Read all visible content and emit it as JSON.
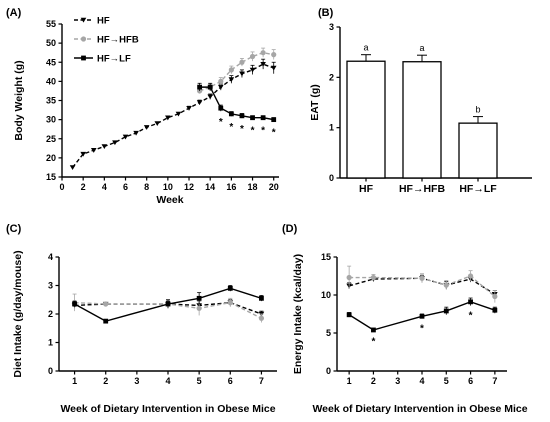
{
  "panel_labels": [
    "(A)",
    "(B)",
    "(C)",
    "(D)"
  ],
  "colors": {
    "hf": "#000000",
    "hfb": "#a6a6a6",
    "lf": "#000000"
  },
  "chart_data": [
    {
      "type": "line",
      "panel": "(A)",
      "xlabel": "Week",
      "ylabel": "Body  Weight (g)",
      "xlim": [
        0,
        20.5
      ],
      "ylim": [
        15,
        55
      ],
      "xticks": [
        0,
        2,
        4,
        6,
        8,
        10,
        12,
        14,
        16,
        18,
        20
      ],
      "yticks": [
        15,
        20,
        25,
        30,
        35,
        40,
        45,
        50,
        55
      ],
      "legend_position": "top-left",
      "series": [
        {
          "name": "HF",
          "style": "dashed",
          "marker": "triangle-down",
          "color": "#000000",
          "x": [
            1,
            2,
            3,
            4,
            5,
            6,
            7,
            8,
            9,
            10,
            11,
            12,
            13,
            14,
            15,
            16,
            17,
            18,
            19,
            20
          ],
          "y": [
            17.5,
            21,
            22,
            23,
            24,
            25.5,
            26.5,
            28,
            29,
            30.5,
            31.5,
            33,
            34.5,
            36,
            38.5,
            40.5,
            42,
            43,
            44.5,
            43.5
          ],
          "err": [
            0.3,
            0.3,
            0.3,
            0.3,
            0.3,
            0.3,
            0.3,
            0.3,
            0.3,
            0.4,
            0.4,
            0.5,
            0.6,
            0.7,
            0.8,
            1,
            1,
            1.2,
            1.3,
            1.5
          ]
        },
        {
          "name": "HF→HFB",
          "style": "dashed",
          "marker": "circle",
          "color": "#a6a6a6",
          "x": [
            13,
            14,
            15,
            16,
            17,
            18,
            19,
            20
          ],
          "y": [
            37.5,
            38.5,
            40,
            43,
            45,
            46.5,
            47.5,
            47
          ],
          "err": [
            0.7,
            0.8,
            1,
            1,
            1,
            1.2,
            1.2,
            1.3
          ]
        },
        {
          "name": "HF→LF",
          "style": "solid",
          "marker": "square",
          "color": "#000000",
          "x": [
            13,
            14,
            15,
            16,
            17,
            18,
            19,
            20
          ],
          "y": [
            38.5,
            38.5,
            33,
            31.5,
            31,
            30.5,
            30.5,
            30
          ],
          "err": [
            1,
            1,
            0.8,
            0.6,
            0.6,
            0.5,
            0.5,
            0.5
          ]
        }
      ],
      "annotations": [
        {
          "x": 15,
          "text": "*"
        },
        {
          "x": 16,
          "text": "*"
        },
        {
          "x": 17,
          "text": "*"
        },
        {
          "x": 18,
          "text": "*"
        },
        {
          "x": 19,
          "text": "*"
        },
        {
          "x": 20,
          "text": "*"
        }
      ]
    },
    {
      "type": "bar",
      "panel": "(B)",
      "ylabel": "EAT (g)",
      "ylim": [
        0,
        3
      ],
      "yticks": [
        0,
        1,
        2,
        3
      ],
      "categories": [
        "HF",
        "HF→HFB",
        "HF→LF"
      ],
      "values": [
        2.32,
        2.31,
        1.09
      ],
      "err": [
        0.13,
        0.13,
        0.13
      ],
      "letters": [
        "a",
        "a",
        "b"
      ]
    },
    {
      "type": "line",
      "panel": "(C)",
      "xlabel": "Week of Dietary  Intervention in Obese  Mice",
      "ylabel": "Diet Intake (g/day/mouse)",
      "ylim": [
        0,
        4
      ],
      "yticks": [
        0.0,
        1.0,
        2.0,
        3.0,
        4.0
      ],
      "ytick_labels": [
        "0",
        "1",
        "2",
        "3",
        "4"
      ],
      "xlim": [
        0.5,
        7.5
      ],
      "xticks": [
        1,
        2,
        3,
        4,
        5,
        6,
        7
      ],
      "series": [
        {
          "name": "HF",
          "style": "dashed",
          "marker": "triangle-down",
          "color": "#000000",
          "x": [
            1,
            2,
            4,
            5,
            6,
            7
          ],
          "y": [
            2.3,
            2.35,
            2.35,
            2.3,
            2.4,
            2.0
          ],
          "err": [
            0.1,
            0.05,
            0.1,
            0.15,
            0.1,
            0.1
          ]
        },
        {
          "name": "HF→HFB",
          "style": "dashed",
          "marker": "circle",
          "color": "#a6a6a6",
          "x": [
            1,
            2,
            4,
            5,
            6,
            7
          ],
          "y": [
            2.4,
            2.35,
            2.35,
            2.2,
            2.4,
            1.85
          ],
          "err": [
            0.3,
            0.05,
            0.15,
            0.25,
            0.15,
            0.15
          ]
        },
        {
          "name": "HF→LF",
          "style": "solid",
          "marker": "square",
          "color": "#000000",
          "x": [
            1,
            2,
            4,
            5,
            6,
            7
          ],
          "y": [
            2.35,
            1.75,
            2.35,
            2.55,
            2.9,
            2.55
          ],
          "err": [
            0.1,
            0.05,
            0.15,
            0.2,
            0.1,
            0.1
          ]
        }
      ]
    },
    {
      "type": "line",
      "panel": "(D)",
      "xlabel": "Week of  Dietary  Intervention in  Obese  Mice",
      "ylabel": "Energy Intake (kcal/day)",
      "ylim": [
        0,
        15
      ],
      "yticks": [
        0,
        5,
        10,
        15
      ],
      "xlim": [
        0.5,
        7.5
      ],
      "xticks": [
        1,
        2,
        3,
        4,
        5,
        6,
        7
      ],
      "series": [
        {
          "name": "HF",
          "style": "dashed",
          "marker": "triangle-down",
          "color": "#000000",
          "x": [
            1,
            2,
            4,
            5,
            6,
            7
          ],
          "y": [
            11.2,
            12.1,
            12.2,
            11.3,
            12.1,
            10.1
          ],
          "err": [
            0.4,
            0.3,
            0.4,
            0.5,
            0.4,
            0.5
          ]
        },
        {
          "name": "HF→HFB",
          "style": "dashed",
          "marker": "circle",
          "color": "#a6a6a6",
          "x": [
            1,
            2,
            4,
            5,
            6,
            7
          ],
          "y": [
            12.3,
            12.3,
            12.2,
            11.3,
            12.5,
            9.8
          ],
          "err": [
            1.5,
            0.4,
            0.6,
            0.6,
            0.7,
            0.8
          ]
        },
        {
          "name": "HF→LF",
          "style": "solid",
          "marker": "square",
          "color": "#000000",
          "x": [
            1,
            2,
            4,
            5,
            6,
            7
          ],
          "y": [
            7.4,
            5.4,
            7.2,
            7.9,
            9.1,
            8.0
          ],
          "err": [
            0.3,
            0.2,
            0.3,
            0.5,
            0.5,
            0.4
          ]
        }
      ],
      "annotations": [
        {
          "x": 2,
          "text": "*"
        },
        {
          "x": 4,
          "text": "*"
        },
        {
          "x": 6,
          "text": "*"
        }
      ]
    }
  ]
}
